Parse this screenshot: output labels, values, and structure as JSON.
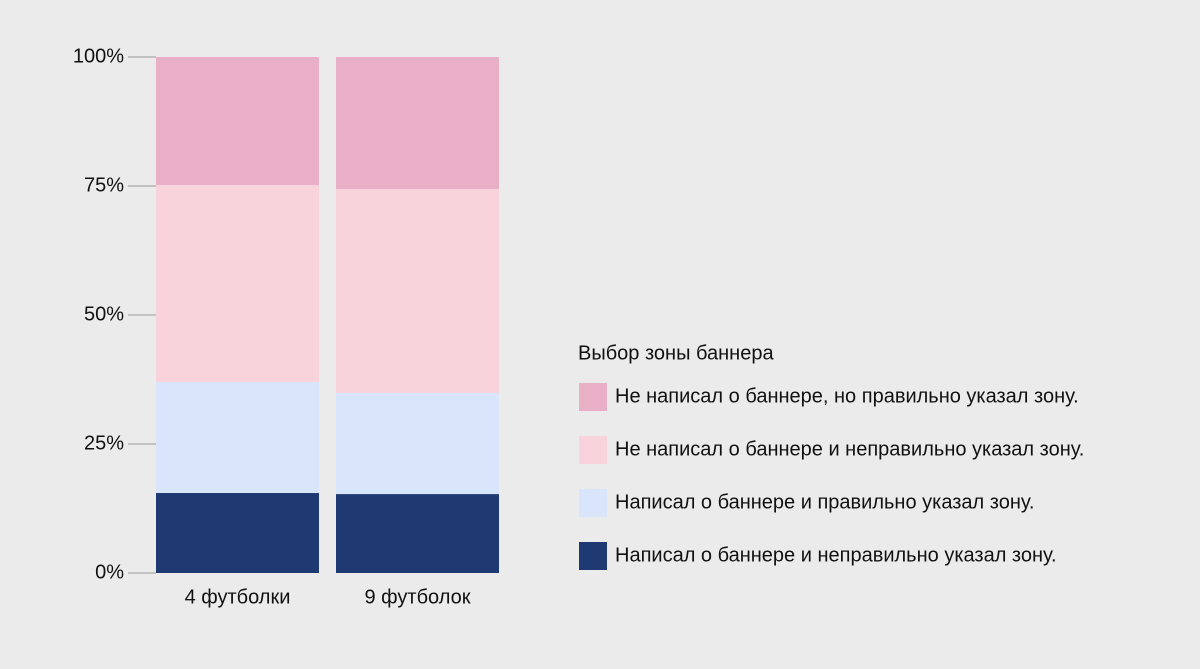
{
  "chart_data": {
    "type": "stacked_bar",
    "categories": [
      "4 футболки",
      "9 футболок"
    ],
    "series": [
      {
        "name": "Написал о баннере и неправильно указал зону.",
        "color": "#1f3a72",
        "values": [
          15.5,
          15.3
        ]
      },
      {
        "name": "Написал о баннере и правильно указал зону.",
        "color": "#d8e5fa",
        "values": [
          21.5,
          19.6
        ]
      },
      {
        "name": "Не написал о баннере и неправильно указал зону.",
        "color": "#f8d3dc",
        "values": [
          38.2,
          39.5
        ]
      },
      {
        "name": "Не написал о баннере, но правильно указал зону.",
        "color": "#e9afc7",
        "values": [
          24.8,
          25.6
        ]
      }
    ],
    "legend_title": "Выбор зоны баннера",
    "ylim": [
      0,
      100
    ],
    "yticks": [
      {
        "value": 0,
        "label": "0%"
      },
      {
        "value": 25,
        "label": "25%"
      },
      {
        "value": 50,
        "label": "50%"
      },
      {
        "value": 75,
        "label": "75%"
      },
      {
        "value": 100,
        "label": "100%"
      }
    ]
  }
}
